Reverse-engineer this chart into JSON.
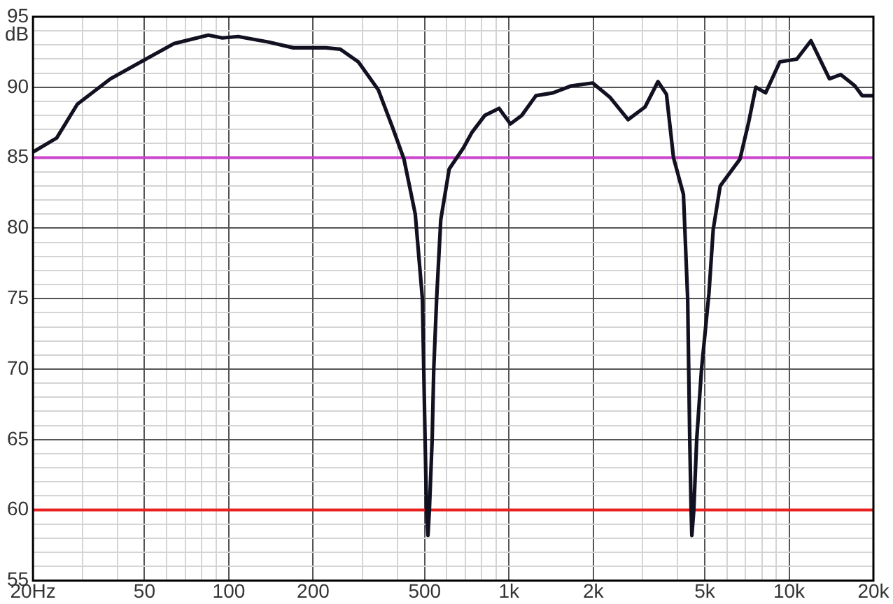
{
  "chart_data": {
    "type": "line",
    "ylabel": "dB",
    "log": "x",
    "grid": true,
    "legend": false,
    "marker": "none",
    "line_style": "solid",
    "xlim": [
      20,
      20000
    ],
    "ylim": [
      55,
      95
    ],
    "xticks": [
      {
        "value": 20,
        "label": "20Hz"
      },
      {
        "value": 30,
        "label": null
      },
      {
        "value": 40,
        "label": null
      },
      50,
      {
        "value": 60,
        "label": null
      },
      {
        "value": 70,
        "label": null
      },
      {
        "value": 80,
        "label": null
      },
      {
        "value": 90,
        "label": null
      },
      100,
      200,
      {
        "value": 300,
        "label": null
      },
      {
        "value": 400,
        "label": null
      },
      500,
      {
        "value": 600,
        "label": null
      },
      {
        "value": 700,
        "label": null
      },
      {
        "value": 800,
        "label": null
      },
      {
        "value": 900,
        "label": null
      },
      {
        "value": 1000,
        "label": "1k"
      },
      {
        "value": 2000,
        "label": "2k"
      },
      {
        "value": 3000,
        "label": null
      },
      {
        "value": 4000,
        "label": null
      },
      {
        "value": 5000,
        "label": "5k"
      },
      {
        "value": 6000,
        "label": null
      },
      {
        "value": 7000,
        "label": null
      },
      {
        "value": 8000,
        "label": null
      },
      {
        "value": 9000,
        "label": null
      },
      {
        "value": 10000,
        "label": "10k"
      },
      {
        "value": 20000,
        "label": "20k"
      }
    ],
    "yticks": [
      55,
      {
        "value": 56,
        "label": null
      },
      {
        "value": 57,
        "label": null
      },
      {
        "value": 58,
        "label": null
      },
      {
        "value": 59,
        "label": null
      },
      60,
      {
        "value": 61,
        "label": null
      },
      {
        "value": 62,
        "label": null
      },
      {
        "value": 63,
        "label": null
      },
      {
        "value": 64,
        "label": null
      },
      65,
      {
        "value": 66,
        "label": null
      },
      {
        "value": 67,
        "label": null
      },
      {
        "value": 68,
        "label": null
      },
      {
        "value": 69,
        "label": null
      },
      70,
      {
        "value": 71,
        "label": null
      },
      {
        "value": 72,
        "label": null
      },
      {
        "value": 73,
        "label": null
      },
      {
        "value": 74,
        "label": null
      },
      75,
      {
        "value": 76,
        "label": null
      },
      {
        "value": 77,
        "label": null
      },
      {
        "value": 78,
        "label": null
      },
      {
        "value": 79,
        "label": null
      },
      80,
      {
        "value": 81,
        "label": null
      },
      {
        "value": 82,
        "label": null
      },
      {
        "value": 83,
        "label": null
      },
      {
        "value": 84,
        "label": null
      },
      85,
      {
        "value": 86,
        "label": null
      },
      {
        "value": 87,
        "label": null
      },
      {
        "value": 88,
        "label": null
      },
      {
        "value": 89,
        "label": null
      },
      90,
      {
        "value": 91,
        "label": null
      },
      {
        "value": 92,
        "label": null
      },
      {
        "value": 93,
        "label": null
      },
      {
        "value": 94,
        "label": null
      },
      95
    ],
    "series": [
      {
        "color": "#111122",
        "x": [
          20,
          24.3,
          28.8,
          37.8,
          50.6,
          63.8,
          84.5,
          94.8,
          108,
          139,
          170,
          222,
          250,
          290,
          342,
          385,
          422,
          463,
          491,
          502,
          508,
          514,
          520,
          532,
          539,
          552,
          571,
          612,
          688,
          738,
          820,
          922,
          1012,
          1111,
          1248,
          1435,
          1671,
          1991,
          2291,
          2663,
          3061,
          3404,
          3650,
          3868,
          4197,
          4345,
          4420,
          4470,
          4497,
          4570,
          4680,
          4870,
          5177,
          5360,
          5678,
          6678,
          7170,
          7606,
          8245,
          9266,
          10660,
          11970,
          13930,
          15300,
          17170,
          18240,
          20000
        ],
        "values": [
          85.4,
          86.4,
          88.8,
          90.6,
          92.0,
          93.1,
          93.7,
          93.5,
          93.6,
          93.2,
          92.8,
          92.8,
          92.7,
          91.8,
          89.8,
          87.1,
          84.9,
          81,
          75,
          65,
          60,
          58.2,
          60,
          65,
          70,
          75,
          80.6,
          84.2,
          85.7,
          86.8,
          88.0,
          88.5,
          87.4,
          88.0,
          89.4,
          89.6,
          90.1,
          90.3,
          89.3,
          87.7,
          88.6,
          90.4,
          89.5,
          85.0,
          82.4,
          75,
          65,
          60,
          58.2,
          60,
          65,
          70,
          75.4,
          79.9,
          83.0,
          84.9,
          87.5,
          90.0,
          89.6,
          91.8,
          92.0,
          93.3,
          90.6,
          90.9,
          90.1,
          89.4,
          89.4
        ]
      }
    ],
    "ref_lines": [
      {
        "axis": "y",
        "value": 85,
        "color": "#cc44cc"
      },
      {
        "axis": "y",
        "value": 60,
        "color": "#e82020"
      }
    ]
  }
}
